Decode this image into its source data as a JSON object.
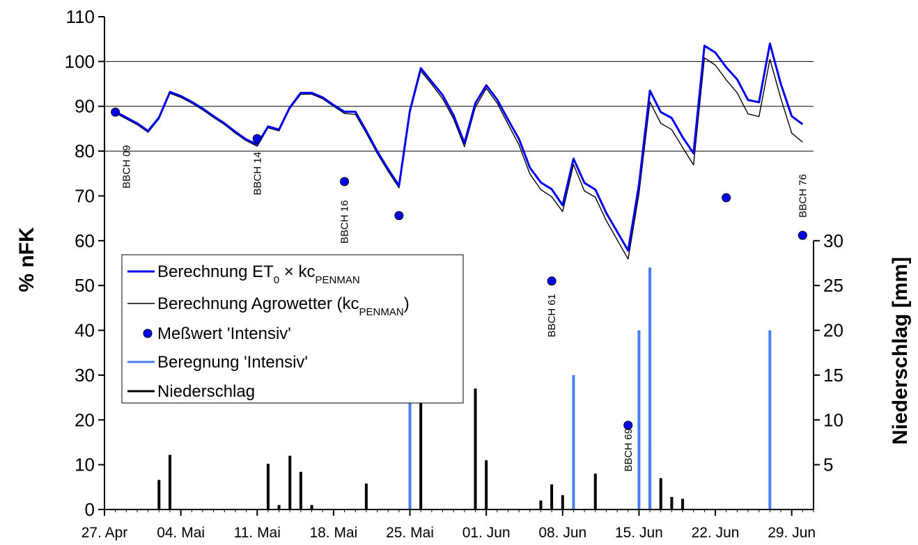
{
  "chart_data": {
    "type": "line",
    "y_left": {
      "label": "% nFK",
      "min": 0,
      "max": 110,
      "ticks": [
        0,
        10,
        20,
        30,
        40,
        50,
        60,
        70,
        80,
        90,
        100,
        110
      ]
    },
    "y_right": {
      "label": "Niederschlag [mm]",
      "min": 0,
      "max": 55,
      "ticks": [
        5,
        10,
        15,
        20,
        25,
        30
      ],
      "tick_labels": [
        "5",
        "10",
        "15",
        "20",
        "25",
        "30"
      ]
    },
    "x_axis": {
      "start": "2004-04-27",
      "end": "2004-07-01",
      "tick_dates": [
        "2004-04-27",
        "2004-05-04",
        "2004-05-11",
        "2004-05-18",
        "2004-05-25",
        "2004-06-01",
        "2004-06-08",
        "2004-06-15",
        "2004-06-22",
        "2004-06-29"
      ],
      "tick_labels": [
        "27. Apr",
        "04. Mai",
        "11. Mai",
        "18. Mai",
        "25. Mai",
        "01. Jun",
        "08. Jun",
        "15. Jun",
        "22. Jun",
        "29. Jun"
      ]
    },
    "gridlines": [
      80,
      90,
      100
    ],
    "legend": {
      "position": "left-middle",
      "items": [
        {
          "key": "penman",
          "text": "Berechnung  ET",
          "sub": "0",
          "text2": " × kc",
          "sub2": "PENMAN",
          "text3": ""
        },
        {
          "key": "agro",
          "text": "Berechnung Agrowetter (kc",
          "sub": "PENMAN",
          "text2": ")",
          "sub2": "",
          "text3": ""
        },
        {
          "key": "mess",
          "text": "Meßwert 'Intensiv'",
          "sub": "",
          "text2": "",
          "sub2": "",
          "text3": ""
        },
        {
          "key": "beregnung",
          "text": "Beregnung 'Intensiv'",
          "sub": "",
          "text2": "",
          "sub2": "",
          "text3": ""
        },
        {
          "key": "niederschlag",
          "text": "Niederschlag",
          "sub": "",
          "text2": "",
          "sub2": "",
          "text3": ""
        }
      ]
    },
    "colors": {
      "penman": "#0000ee",
      "agro": "#000000",
      "mess": "#0000ee",
      "beregnung": "#4a7ef0",
      "niederschlag": "#000000"
    },
    "series": [
      {
        "key": "penman",
        "name": "Berechnung ET0 × kcPENMAN",
        "axis": "left",
        "points": [
          [
            "2004-04-28",
            88.8
          ],
          [
            "2004-04-29",
            87.5
          ],
          [
            "2004-04-30",
            86.2
          ],
          [
            "2004-05-01",
            84.5
          ],
          [
            "2004-05-02",
            87.5
          ],
          [
            "2004-05-03",
            93.2
          ],
          [
            "2004-05-04",
            92.3
          ],
          [
            "2004-05-05",
            91.0
          ],
          [
            "2004-05-06",
            89.5
          ],
          [
            "2004-05-07",
            87.8
          ],
          [
            "2004-05-08",
            86.2
          ],
          [
            "2004-05-09",
            84.3
          ],
          [
            "2004-05-10",
            82.6
          ],
          [
            "2004-05-11",
            81.5
          ],
          [
            "2004-05-12",
            85.5
          ],
          [
            "2004-05-13",
            84.8
          ],
          [
            "2004-05-14",
            89.8
          ],
          [
            "2004-05-15",
            93.0
          ],
          [
            "2004-05-16",
            93.0
          ],
          [
            "2004-05-17",
            92.0
          ],
          [
            "2004-05-18",
            90.3
          ],
          [
            "2004-05-19",
            88.8
          ],
          [
            "2004-05-20",
            88.8
          ],
          [
            "2004-05-21",
            84.5
          ],
          [
            "2004-05-22",
            80.0
          ],
          [
            "2004-05-23",
            76.0
          ],
          [
            "2004-05-24",
            72.3
          ],
          [
            "2004-05-25",
            89.0
          ],
          [
            "2004-05-26",
            98.5
          ],
          [
            "2004-05-27",
            95.5
          ],
          [
            "2004-05-28",
            92.5
          ],
          [
            "2004-05-29",
            88.0
          ],
          [
            "2004-05-30",
            81.8
          ],
          [
            "2004-05-31",
            90.7
          ],
          [
            "2004-06-01",
            94.7
          ],
          [
            "2004-06-02",
            91.5
          ],
          [
            "2004-06-03",
            87.0
          ],
          [
            "2004-06-04",
            82.7
          ],
          [
            "2004-06-05",
            76.3
          ],
          [
            "2004-06-06",
            73.0
          ],
          [
            "2004-06-07",
            71.5
          ],
          [
            "2004-06-08",
            67.9
          ],
          [
            "2004-06-09",
            78.3
          ],
          [
            "2004-06-10",
            72.9
          ],
          [
            "2004-06-11",
            71.4
          ],
          [
            "2004-06-12",
            66.2
          ],
          [
            "2004-06-13",
            62.0
          ],
          [
            "2004-06-14",
            57.8
          ],
          [
            "2004-06-15",
            72.5
          ],
          [
            "2004-06-16",
            93.5
          ],
          [
            "2004-06-17",
            88.7
          ],
          [
            "2004-06-18",
            87.4
          ],
          [
            "2004-06-19",
            83.1
          ],
          [
            "2004-06-20",
            79.5
          ],
          [
            "2004-06-21",
            103.5
          ],
          [
            "2004-06-22",
            102.0
          ],
          [
            "2004-06-23",
            98.7
          ],
          [
            "2004-06-24",
            96.0
          ],
          [
            "2004-06-25",
            91.4
          ],
          [
            "2004-06-26",
            90.9
          ],
          [
            "2004-06-27",
            104.0
          ],
          [
            "2004-06-28",
            95.0
          ],
          [
            "2004-06-29",
            87.8
          ],
          [
            "2004-06-30",
            86.0
          ]
        ]
      },
      {
        "key": "agro",
        "name": "Berechnung Agrowetter (kcPENMAN)",
        "axis": "left",
        "points": [
          [
            "2004-04-28",
            88.5
          ],
          [
            "2004-04-29",
            87.2
          ],
          [
            "2004-04-30",
            85.9
          ],
          [
            "2004-05-01",
            84.2
          ],
          [
            "2004-05-02",
            87.2
          ],
          [
            "2004-05-03",
            92.9
          ],
          [
            "2004-05-04",
            92.0
          ],
          [
            "2004-05-05",
            90.7
          ],
          [
            "2004-05-06",
            89.2
          ],
          [
            "2004-05-07",
            87.5
          ],
          [
            "2004-05-08",
            85.9
          ],
          [
            "2004-05-09",
            84.0
          ],
          [
            "2004-05-10",
            82.3
          ],
          [
            "2004-05-11",
            81.1
          ],
          [
            "2004-05-12",
            85.2
          ],
          [
            "2004-05-13",
            84.5
          ],
          [
            "2004-05-14",
            89.5
          ],
          [
            "2004-05-15",
            92.7
          ],
          [
            "2004-05-16",
            92.7
          ],
          [
            "2004-05-17",
            91.7
          ],
          [
            "2004-05-18",
            90.0
          ],
          [
            "2004-05-19",
            88.4
          ],
          [
            "2004-05-20",
            88.2
          ],
          [
            "2004-05-21",
            84.0
          ],
          [
            "2004-05-22",
            79.5
          ],
          [
            "2004-05-23",
            75.5
          ],
          [
            "2004-05-24",
            71.8
          ],
          [
            "2004-05-25",
            88.5
          ],
          [
            "2004-05-26",
            97.9
          ],
          [
            "2004-05-27",
            94.9
          ],
          [
            "2004-05-28",
            91.7
          ],
          [
            "2004-05-29",
            87.2
          ],
          [
            "2004-05-30",
            81.0
          ],
          [
            "2004-05-31",
            89.8
          ],
          [
            "2004-06-01",
            94.0
          ],
          [
            "2004-06-02",
            90.7
          ],
          [
            "2004-06-03",
            86.0
          ],
          [
            "2004-06-04",
            81.4
          ],
          [
            "2004-06-05",
            74.9
          ],
          [
            "2004-06-06",
            71.4
          ],
          [
            "2004-06-07",
            69.8
          ],
          [
            "2004-06-08",
            66.5
          ],
          [
            "2004-06-09",
            77.0
          ],
          [
            "2004-06-10",
            71.1
          ],
          [
            "2004-06-11",
            69.7
          ],
          [
            "2004-06-12",
            64.5
          ],
          [
            "2004-06-13",
            60.2
          ],
          [
            "2004-06-14",
            55.9
          ],
          [
            "2004-06-15",
            70.5
          ],
          [
            "2004-06-16",
            91.0
          ],
          [
            "2004-06-17",
            86.2
          ],
          [
            "2004-06-18",
            84.8
          ],
          [
            "2004-06-19",
            80.8
          ],
          [
            "2004-06-20",
            76.9
          ],
          [
            "2004-06-21",
            100.8
          ],
          [
            "2004-06-22",
            99.2
          ],
          [
            "2004-06-23",
            95.9
          ],
          [
            "2004-06-24",
            93.0
          ],
          [
            "2004-06-25",
            88.3
          ],
          [
            "2004-06-26",
            87.7
          ],
          [
            "2004-06-27",
            100.5
          ],
          [
            "2004-06-28",
            91.8
          ],
          [
            "2004-06-29",
            84.0
          ],
          [
            "2004-06-30",
            82.0
          ]
        ]
      },
      {
        "key": "mess",
        "name": "Meßwert 'Intensiv'",
        "axis": "left",
        "style": "scatter",
        "points": [
          [
            "2004-04-28",
            88.7
          ],
          [
            "2004-05-11",
            82.8
          ],
          [
            "2004-05-19",
            73.2
          ],
          [
            "2004-05-24",
            65.6
          ],
          [
            "2004-06-07",
            51.0
          ],
          [
            "2004-06-14",
            18.8
          ],
          [
            "2004-06-23",
            69.6
          ],
          [
            "2004-06-30",
            61.2
          ]
        ]
      },
      {
        "key": "beregnung",
        "name": "Beregnung 'Intensiv'",
        "axis": "right",
        "style": "bar",
        "points": [
          [
            "2004-05-25",
            20
          ],
          [
            "2004-06-09",
            15
          ],
          [
            "2004-06-15",
            20
          ],
          [
            "2004-06-16",
            27
          ],
          [
            "2004-06-27",
            20
          ]
        ]
      },
      {
        "key": "niederschlag",
        "name": "Niederschlag",
        "axis": "right",
        "style": "bar",
        "points": [
          [
            "2004-05-02",
            3.3
          ],
          [
            "2004-05-03",
            6.1
          ],
          [
            "2004-05-12",
            5.1
          ],
          [
            "2004-05-13",
            0.5
          ],
          [
            "2004-05-14",
            6.0
          ],
          [
            "2004-05-15",
            4.2
          ],
          [
            "2004-05-16",
            0.5
          ],
          [
            "2004-05-21",
            2.9
          ],
          [
            "2004-05-26",
            13.3
          ],
          [
            "2004-05-31",
            13.5
          ],
          [
            "2004-06-01",
            5.5
          ],
          [
            "2004-06-06",
            1.0
          ],
          [
            "2004-06-07",
            2.8
          ],
          [
            "2004-06-08",
            1.6
          ],
          [
            "2004-06-11",
            4.0
          ],
          [
            "2004-06-16",
            7.0
          ],
          [
            "2004-06-17",
            3.5
          ],
          [
            "2004-06-18",
            1.4
          ],
          [
            "2004-06-19",
            1.2
          ]
        ]
      }
    ],
    "annotations": [
      {
        "text": "BBCH 09",
        "date": "2004-04-29",
        "y": 76.5
      },
      {
        "text": "BBCH 14",
        "date": "2004-05-11",
        "y": 75.0
      },
      {
        "text": "BBCH 16",
        "date": "2004-05-19",
        "y": 64.2
      },
      {
        "text": "BBCH 61",
        "date": "2004-06-07",
        "y": 43.3
      },
      {
        "text": "BBCH 69",
        "date": "2004-06-14",
        "y": 13.3
      },
      {
        "text": "BBCH 76",
        "date": "2004-06-30",
        "y": 70.0
      }
    ]
  }
}
